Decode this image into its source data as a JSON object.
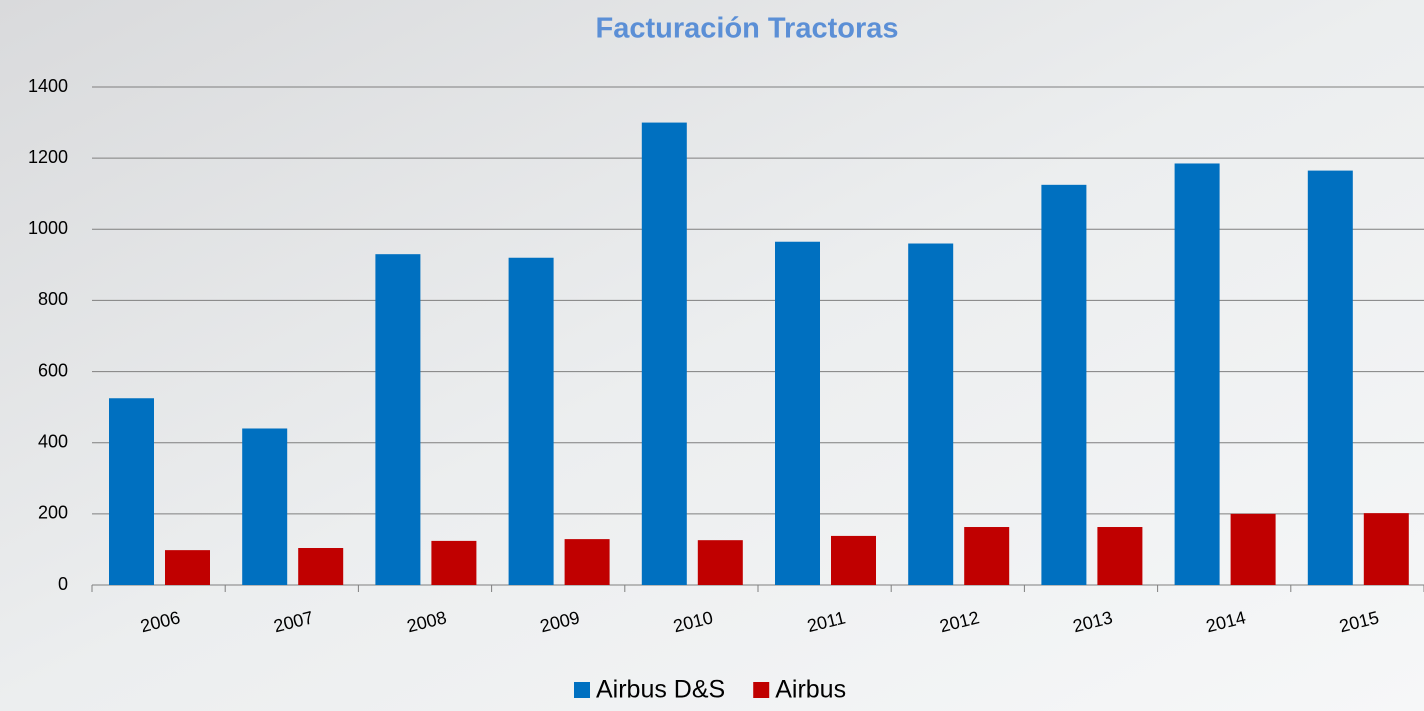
{
  "chart_data": {
    "type": "bar",
    "title": "Facturación Tractoras",
    "categories": [
      "2006",
      "2007",
      "2008",
      "2009",
      "2010",
      "2011",
      "2012",
      "2013",
      "2014",
      "2015"
    ],
    "series": [
      {
        "name": "Airbus D&S",
        "color": "#0070c0",
        "values": [
          525,
          440,
          930,
          920,
          1300,
          965,
          960,
          1125,
          1185,
          1165
        ]
      },
      {
        "name": "Airbus",
        "color": "#c00000",
        "values": [
          98,
          104,
          124,
          129,
          126,
          138,
          163,
          163,
          200,
          202
        ]
      }
    ],
    "ylim": [
      0,
      1400
    ],
    "yticks": [
      0,
      200,
      400,
      600,
      800,
      1000,
      1200,
      1400
    ],
    "grid": true,
    "legend": "bottom"
  }
}
